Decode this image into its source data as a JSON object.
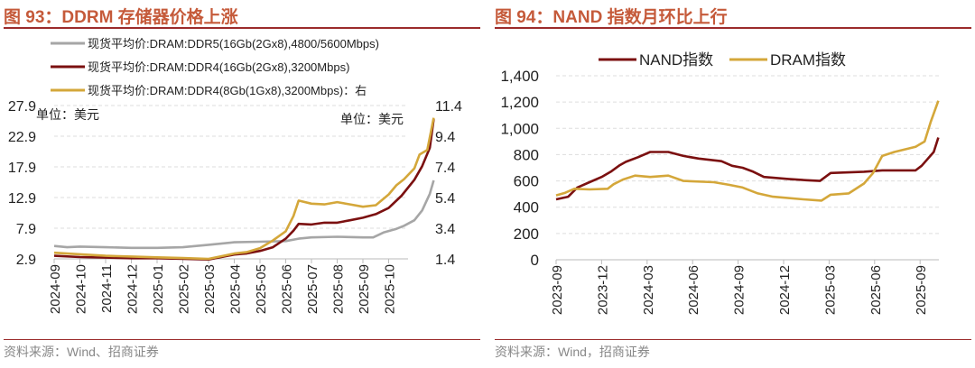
{
  "chart_data": [
    {
      "type": "line",
      "title": "图 93：DDRM 存储器价格上涨",
      "x_ticks": [
        "2024-09",
        "2024-10",
        "2024-11",
        "2024-12",
        "2025-01",
        "2025-02",
        "2025-03",
        "2025-04",
        "2025-05",
        "2025-06",
        "2025-07",
        "2025-08",
        "2025-09",
        "2025-10"
      ],
      "y_left": {
        "ticks": [
          "27.9",
          "22.9",
          "17.9",
          "12.9",
          "7.9",
          "2.9"
        ],
        "range": [
          2.9,
          27.9
        ],
        "unit_label": "单位：美元"
      },
      "y_right": {
        "ticks": [
          "11.4",
          "9.4",
          "7.4",
          "5.4",
          "3.4",
          "1.4"
        ],
        "range": [
          1.4,
          11.4
        ],
        "unit_label": "单位：美元"
      },
      "x_unit": "months since 2024-09",
      "series": [
        {
          "name": "现货平均价:DRAM:DDR5(16Gb(2Gx8),4800/5600Mbps)",
          "color": "#a6a6a6",
          "axis": "left",
          "points": [
            [
              0,
              5.0
            ],
            [
              0.5,
              4.8
            ],
            [
              1,
              4.9
            ],
            [
              2,
              4.8
            ],
            [
              3,
              4.7
            ],
            [
              4,
              4.7
            ],
            [
              5,
              4.8
            ],
            [
              6,
              5.2
            ],
            [
              7,
              5.6
            ],
            [
              8,
              5.7
            ],
            [
              9,
              5.8
            ],
            [
              9.5,
              6.2
            ],
            [
              10,
              6.4
            ],
            [
              11,
              6.5
            ],
            [
              12,
              6.4
            ],
            [
              12.4,
              6.4
            ],
            [
              12.8,
              7.2
            ],
            [
              13.3,
              7.8
            ],
            [
              13.6,
              8.3
            ],
            [
              14,
              9.2
            ],
            [
              14.3,
              10.8
            ],
            [
              14.6,
              13.5
            ],
            [
              14.75,
              15.7
            ]
          ]
        },
        {
          "name": "现货平均价:DRAM:DDR4(16Gb(2Gx8),3200Mbps)",
          "color": "#7b1010",
          "axis": "left",
          "points": [
            [
              0,
              3.4
            ],
            [
              1,
              3.2
            ],
            [
              2,
              3.1
            ],
            [
              3,
              3.0
            ],
            [
              4,
              3.0
            ],
            [
              5,
              2.9
            ],
            [
              6,
              2.8
            ],
            [
              7,
              3.6
            ],
            [
              7.5,
              3.8
            ],
            [
              8,
              4.2
            ],
            [
              8.5,
              4.8
            ],
            [
              9,
              6.2
            ],
            [
              9.3,
              7.5
            ],
            [
              9.5,
              8.6
            ],
            [
              10,
              8.5
            ],
            [
              10.5,
              8.8
            ],
            [
              11,
              8.8
            ],
            [
              11.5,
              9.2
            ],
            [
              12,
              9.6
            ],
            [
              12.5,
              10.2
            ],
            [
              13,
              11.2
            ],
            [
              13.5,
              13.2
            ],
            [
              14,
              15.8
            ],
            [
              14.3,
              18
            ],
            [
              14.6,
              21
            ],
            [
              14.75,
              25.7
            ]
          ]
        },
        {
          "name": "现货平均价:DRAM:DDR4(8Gb(1Gx8),3200Mbps)：右",
          "color": "#d4a73a",
          "axis": "right",
          "points": [
            [
              0,
              1.8
            ],
            [
              1,
              1.7
            ],
            [
              2,
              1.6
            ],
            [
              3,
              1.55
            ],
            [
              4,
              1.5
            ],
            [
              5,
              1.45
            ],
            [
              6,
              1.4
            ],
            [
              7,
              1.75
            ],
            [
              7.5,
              1.85
            ],
            [
              8,
              2.1
            ],
            [
              8.5,
              2.6
            ],
            [
              9,
              3.2
            ],
            [
              9.3,
              4.2
            ],
            [
              9.5,
              5.2
            ],
            [
              10,
              5.0
            ],
            [
              10.5,
              4.95
            ],
            [
              11,
              5.1
            ],
            [
              11.5,
              4.95
            ],
            [
              12,
              4.8
            ],
            [
              12.5,
              4.9
            ],
            [
              13,
              5.6
            ],
            [
              13.3,
              6.2
            ],
            [
              13.6,
              6.6
            ],
            [
              14,
              7.3
            ],
            [
              14.2,
              8.2
            ],
            [
              14.5,
              8.5
            ],
            [
              14.75,
              10.6
            ]
          ]
        }
      ],
      "legend_placement": "top"
    },
    {
      "type": "line",
      "title": "图 94：NAND 指数月环比上行",
      "x_ticks": [
        "2023-09",
        "2023-12",
        "2024-03",
        "2024-06",
        "2024-09",
        "2024-12",
        "2025-03",
        "2025-06",
        "2025-09"
      ],
      "y_ticks": [
        "1,400",
        "1,200",
        "1,000",
        "800",
        "600",
        "400",
        "200",
        "0"
      ],
      "ylim": [
        0,
        1400
      ],
      "x_unit": "months since 2023-09",
      "series": [
        {
          "name": "NAND指数",
          "color": "#7b1010",
          "points": [
            [
              0,
              460
            ],
            [
              0.8,
              480
            ],
            [
              1.4,
              550
            ],
            [
              2.2,
              590
            ],
            [
              3,
              630
            ],
            [
              3.6,
              670
            ],
            [
              4.2,
              720
            ],
            [
              4.6,
              745
            ],
            [
              5.4,
              780
            ],
            [
              6.2,
              820
            ],
            [
              7.4,
              820
            ],
            [
              8.4,
              790
            ],
            [
              9.4,
              770
            ],
            [
              10.9,
              750
            ],
            [
              11.6,
              715
            ],
            [
              12.3,
              700
            ],
            [
              13.0,
              670
            ],
            [
              13.7,
              630
            ],
            [
              15.3,
              615
            ],
            [
              16.5,
              605
            ],
            [
              17.4,
              600
            ],
            [
              18.1,
              660
            ],
            [
              20.3,
              670
            ],
            [
              21.5,
              680
            ],
            [
              23.7,
              680
            ],
            [
              24.1,
              715
            ],
            [
              24.9,
              820
            ],
            [
              25.2,
              930
            ]
          ]
        },
        {
          "name": "DRAM指数",
          "color": "#d4a73a",
          "points": [
            [
              0,
              490
            ],
            [
              0.6,
              510
            ],
            [
              1.2,
              540
            ],
            [
              2.2,
              535
            ],
            [
              3.4,
              540
            ],
            [
              3.8,
              575
            ],
            [
              4.4,
              610
            ],
            [
              5.2,
              640
            ],
            [
              6.2,
              630
            ],
            [
              7.4,
              640
            ],
            [
              8.4,
              600
            ],
            [
              10.4,
              590
            ],
            [
              11.4,
              570
            ],
            [
              12.3,
              550
            ],
            [
              13.3,
              505
            ],
            [
              14.3,
              480
            ],
            [
              16.3,
              460
            ],
            [
              17.5,
              450
            ],
            [
              18.1,
              495
            ],
            [
              19.3,
              505
            ],
            [
              20.3,
              580
            ],
            [
              20.9,
              660
            ],
            [
              21.5,
              790
            ],
            [
              22.3,
              820
            ],
            [
              23.7,
              860
            ],
            [
              24.3,
              900
            ],
            [
              24.7,
              1050
            ],
            [
              25.2,
              1210
            ]
          ]
        }
      ],
      "legend_placement": "top"
    }
  ],
  "left": {
    "title": "图 93：DDRM 存储器价格上涨",
    "source": "资料来源：Wind、招商证券"
  },
  "right": {
    "title": "图 94：NAND 指数月环比上行",
    "source": "资料来源：Wind，招商证券"
  }
}
